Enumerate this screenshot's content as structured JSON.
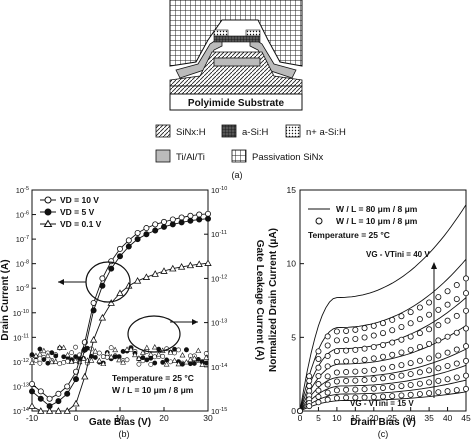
{
  "panel_a": {
    "substrate_label": "Polyimide Substrate",
    "caption": "(a)",
    "legend": [
      {
        "key": "sinx",
        "label": "SiNx:H"
      },
      {
        "key": "asi",
        "label": "a-Si:H"
      },
      {
        "key": "nasi",
        "label": "n+ a-Si:H"
      },
      {
        "key": "metal",
        "label": "Ti/Al/Ti"
      },
      {
        "key": "passivation",
        "label": "Passivation SiNx"
      }
    ]
  },
  "chart_data": [
    {
      "type": "scatter",
      "panel": "(b)",
      "xlabel": "Gate Bias (V)",
      "ylabel_left": "Drain Current (A)",
      "ylabel_right": "Gate Leakage Current (A)",
      "xlim": [
        -10,
        30
      ],
      "xticks": [
        -10,
        0,
        10,
        20,
        30
      ],
      "ylim_left_log10": [
        -14,
        -5
      ],
      "ylim_right_log10": [
        -15,
        -10
      ],
      "yticks_left": [
        "10-14",
        "10-13",
        "10-12",
        "10-11",
        "10-10",
        "10-9",
        "10-8",
        "10-7",
        "10-6",
        "10-5"
      ],
      "yticks_right": [
        "10-15",
        "10-14",
        "10-13",
        "10-12",
        "10-11",
        "10-10"
      ],
      "annotation": [
        "Temperature = 25 °C",
        "W / L = 10 μm / 8 μm"
      ],
      "series": [
        {
          "name": "VD = 10 V",
          "marker": "open-circle",
          "x": [
            -10,
            -8,
            -6,
            -4,
            -2,
            0,
            2,
            4,
            6,
            8,
            10,
            12,
            14,
            16,
            18,
            20,
            22,
            24,
            26,
            28,
            30
          ],
          "y_log10": [
            -12.9,
            -13.2,
            -13.5,
            -13.3,
            -13.0,
            -12.4,
            -11.2,
            -9.6,
            -8.6,
            -7.9,
            -7.4,
            -7.05,
            -6.75,
            -6.55,
            -6.4,
            -6.3,
            -6.2,
            -6.12,
            -6.05,
            -6.0,
            -5.97
          ]
        },
        {
          "name": "VD = 5 V",
          "marker": "filled-circle",
          "x": [
            -10,
            -8,
            -6,
            -4,
            -2,
            0,
            2,
            4,
            6,
            8,
            10,
            12,
            14,
            16,
            18,
            20,
            22,
            24,
            26,
            28,
            30
          ],
          "y_log10": [
            -13.2,
            -13.5,
            -13.8,
            -13.6,
            -13.3,
            -12.7,
            -11.5,
            -9.9,
            -8.9,
            -8.2,
            -7.7,
            -7.3,
            -7.0,
            -6.8,
            -6.65,
            -6.5,
            -6.4,
            -6.32,
            -6.25,
            -6.2,
            -6.17
          ]
        },
        {
          "name": "VD = 0.1 V",
          "marker": "open-triangle",
          "x": [
            -10,
            -8,
            -6,
            -4,
            -2,
            0,
            2,
            4,
            6,
            8,
            10,
            12,
            14,
            16,
            18,
            20,
            22,
            24,
            26,
            28,
            30
          ],
          "y_log10": [
            -13.8,
            -14.0,
            -14.0,
            -14.0,
            -14.0,
            -13.7,
            -12.6,
            -11.1,
            -10.2,
            -9.6,
            -9.2,
            -8.9,
            -8.7,
            -8.55,
            -8.42,
            -8.3,
            -8.2,
            -8.13,
            -8.07,
            -8.02,
            -7.98
          ]
        }
      ],
      "leakage_series": {
        "name": "Gate Leakage",
        "y_log10_right_range": [
          -13.95,
          -13.55
        ]
      }
    },
    {
      "type": "line",
      "panel": "(c)",
      "xlabel": "Drain Bias (V)",
      "ylabel": "Normalized Drain Current (μA)",
      "xlim": [
        0,
        45
      ],
      "ylim": [
        0,
        15
      ],
      "xticks": [
        0,
        5,
        10,
        15,
        20,
        25,
        30,
        35,
        40,
        45
      ],
      "yticks": [
        0,
        5,
        10,
        15
      ],
      "legend": [
        {
          "name": "W / L = 80 μm / 8 μm",
          "marker": "line"
        },
        {
          "name": "W / L = 10 μm / 8 μm",
          "marker": "open-circle"
        }
      ],
      "annotations": [
        "Temperature = 25 °C",
        "VG - VTini = 40 V",
        "VG - VTini = 15 V"
      ],
      "curve_endpoints_at_45V": [
        14.0,
        10.3,
        7.7,
        5.8,
        4.2,
        3.1,
        2.1,
        1.3
      ],
      "circle_endpoints_at_45V": [
        9.0,
        8.0,
        6.8,
        5.6,
        4.4,
        3.4,
        2.4,
        1.5
      ]
    }
  ],
  "captions": {
    "b": "(b)",
    "c": "(c)"
  }
}
